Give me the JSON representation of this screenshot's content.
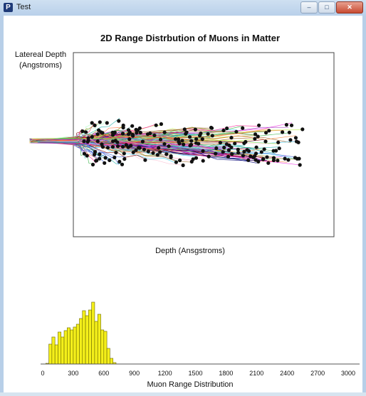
{
  "window": {
    "title": "Test",
    "app_icon_letter": "P",
    "buttons": {
      "minimize": "–",
      "maximize": "□",
      "close": "✕"
    }
  },
  "chart_data": [
    {
      "type": "scatter",
      "title": "2D Range Distrbution of Muons in Matter",
      "ylabel_line1": "Latereal Depth",
      "ylabel_line2": "(Angstroms)",
      "xlabel": "Depth (Ansgstroms)",
      "grid": false,
      "colors": {
        "points": "#111111"
      },
      "description_values": {
        "source_depth": 0,
        "depth_range": [
          0,
          1300
        ]
      }
    },
    {
      "type": "bar",
      "xlabel": "Muon Range Distribution",
      "xlim": [
        0,
        3000
      ],
      "tick_labels": [
        "0",
        "300",
        "600",
        "900",
        "1200",
        "1500",
        "1800",
        "2100",
        "2400",
        "2700",
        "3000"
      ],
      "bin_width": 30,
      "bin_starts": [
        30,
        60,
        90,
        120,
        150,
        180,
        210,
        240,
        270,
        300,
        330,
        360,
        390,
        420,
        450,
        480,
        510,
        540,
        570,
        600,
        630,
        660,
        690
      ],
      "values": [
        1,
        28,
        38,
        27,
        45,
        38,
        47,
        51,
        48,
        52,
        56,
        64,
        75,
        68,
        76,
        87,
        60,
        70,
        48,
        46,
        22,
        8,
        2
      ],
      "colors": {
        "bar_fill": "#f4ef1a",
        "bar_stroke": "#6a6600",
        "axis": "#555555"
      }
    }
  ]
}
